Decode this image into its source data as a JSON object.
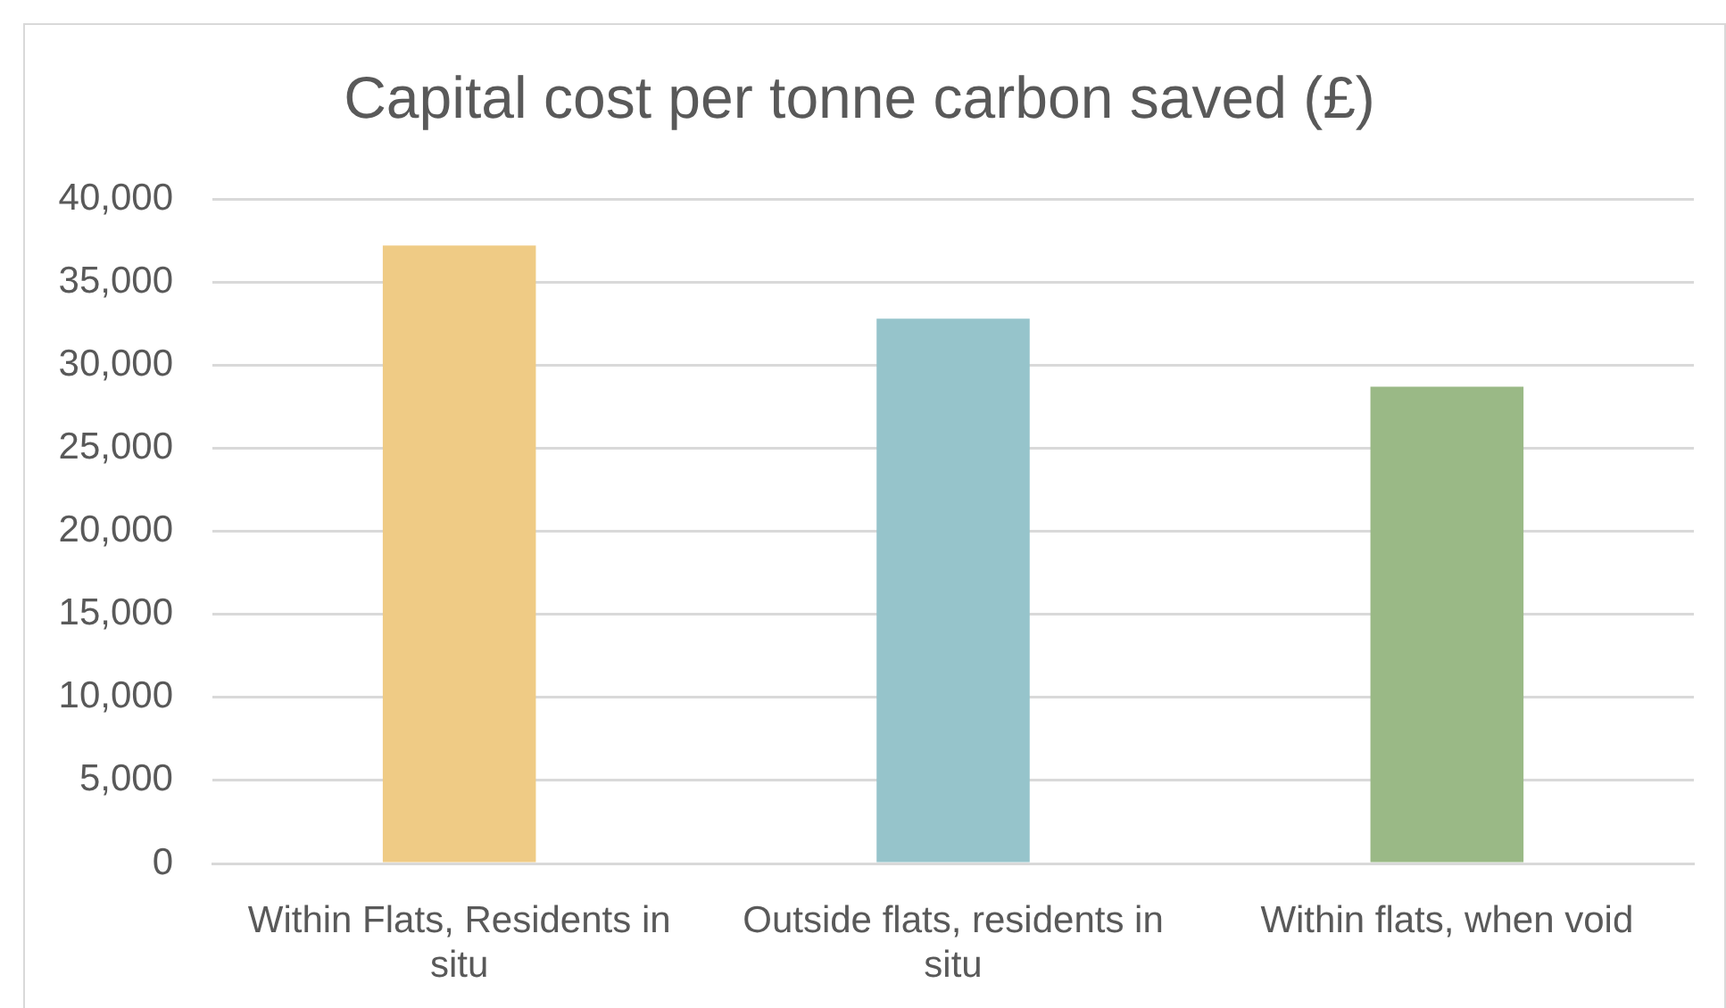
{
  "chart_data": {
    "type": "bar",
    "title": "Capital cost per tonne carbon saved (£)",
    "categories": [
      "Within Flats, Residents in situ",
      "Outside flats, residents in situ",
      "Within flats, when void"
    ],
    "values": [
      37200,
      32800,
      28700
    ],
    "colors": [
      "#efcb85",
      "#96c4cb",
      "#9ab986"
    ],
    "ylim": [
      0,
      40000
    ],
    "yticks": [
      {
        "value": 0,
        "label": "0"
      },
      {
        "value": 5000,
        "label": "5,000"
      },
      {
        "value": 10000,
        "label": "10,000"
      },
      {
        "value": 15000,
        "label": "15,000"
      },
      {
        "value": 20000,
        "label": "20,000"
      },
      {
        "value": 25000,
        "label": "25,000"
      },
      {
        "value": 30000,
        "label": "30,000"
      },
      {
        "value": 35000,
        "label": "35,000"
      },
      {
        "value": 40000,
        "label": "40,000"
      }
    ],
    "grid": "y"
  }
}
